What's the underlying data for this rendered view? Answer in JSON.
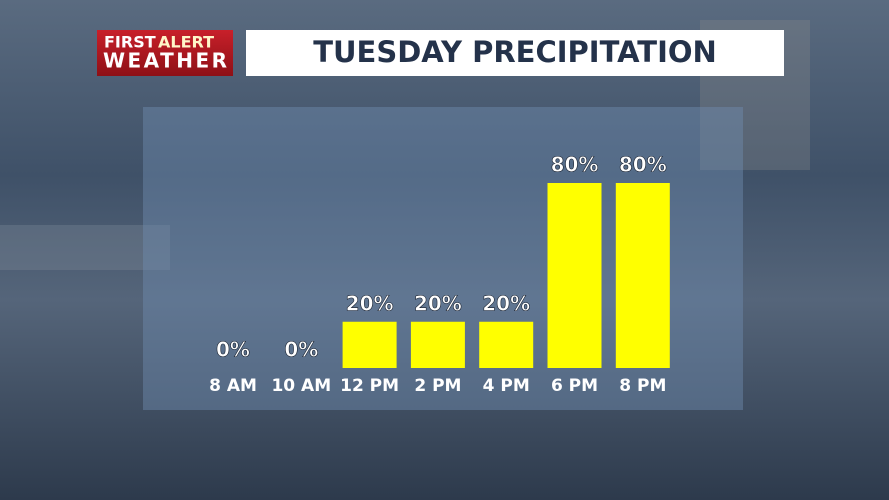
{
  "logo": {
    "first": "FIRST",
    "alert": "ALERT",
    "weather": "WEATHER"
  },
  "chart_data": {
    "type": "bar",
    "title": "TUESDAY PRECIPITATION",
    "categories": [
      "8 AM",
      "10 AM",
      "12 PM",
      "2 PM",
      "4 PM",
      "6 PM",
      "8 PM"
    ],
    "values": [
      0,
      0,
      20,
      20,
      20,
      80,
      80
    ],
    "value_labels": [
      "0%",
      "0%",
      "20%",
      "20%",
      "20%",
      "80%",
      "80%"
    ],
    "color": "#ffff00"
  }
}
